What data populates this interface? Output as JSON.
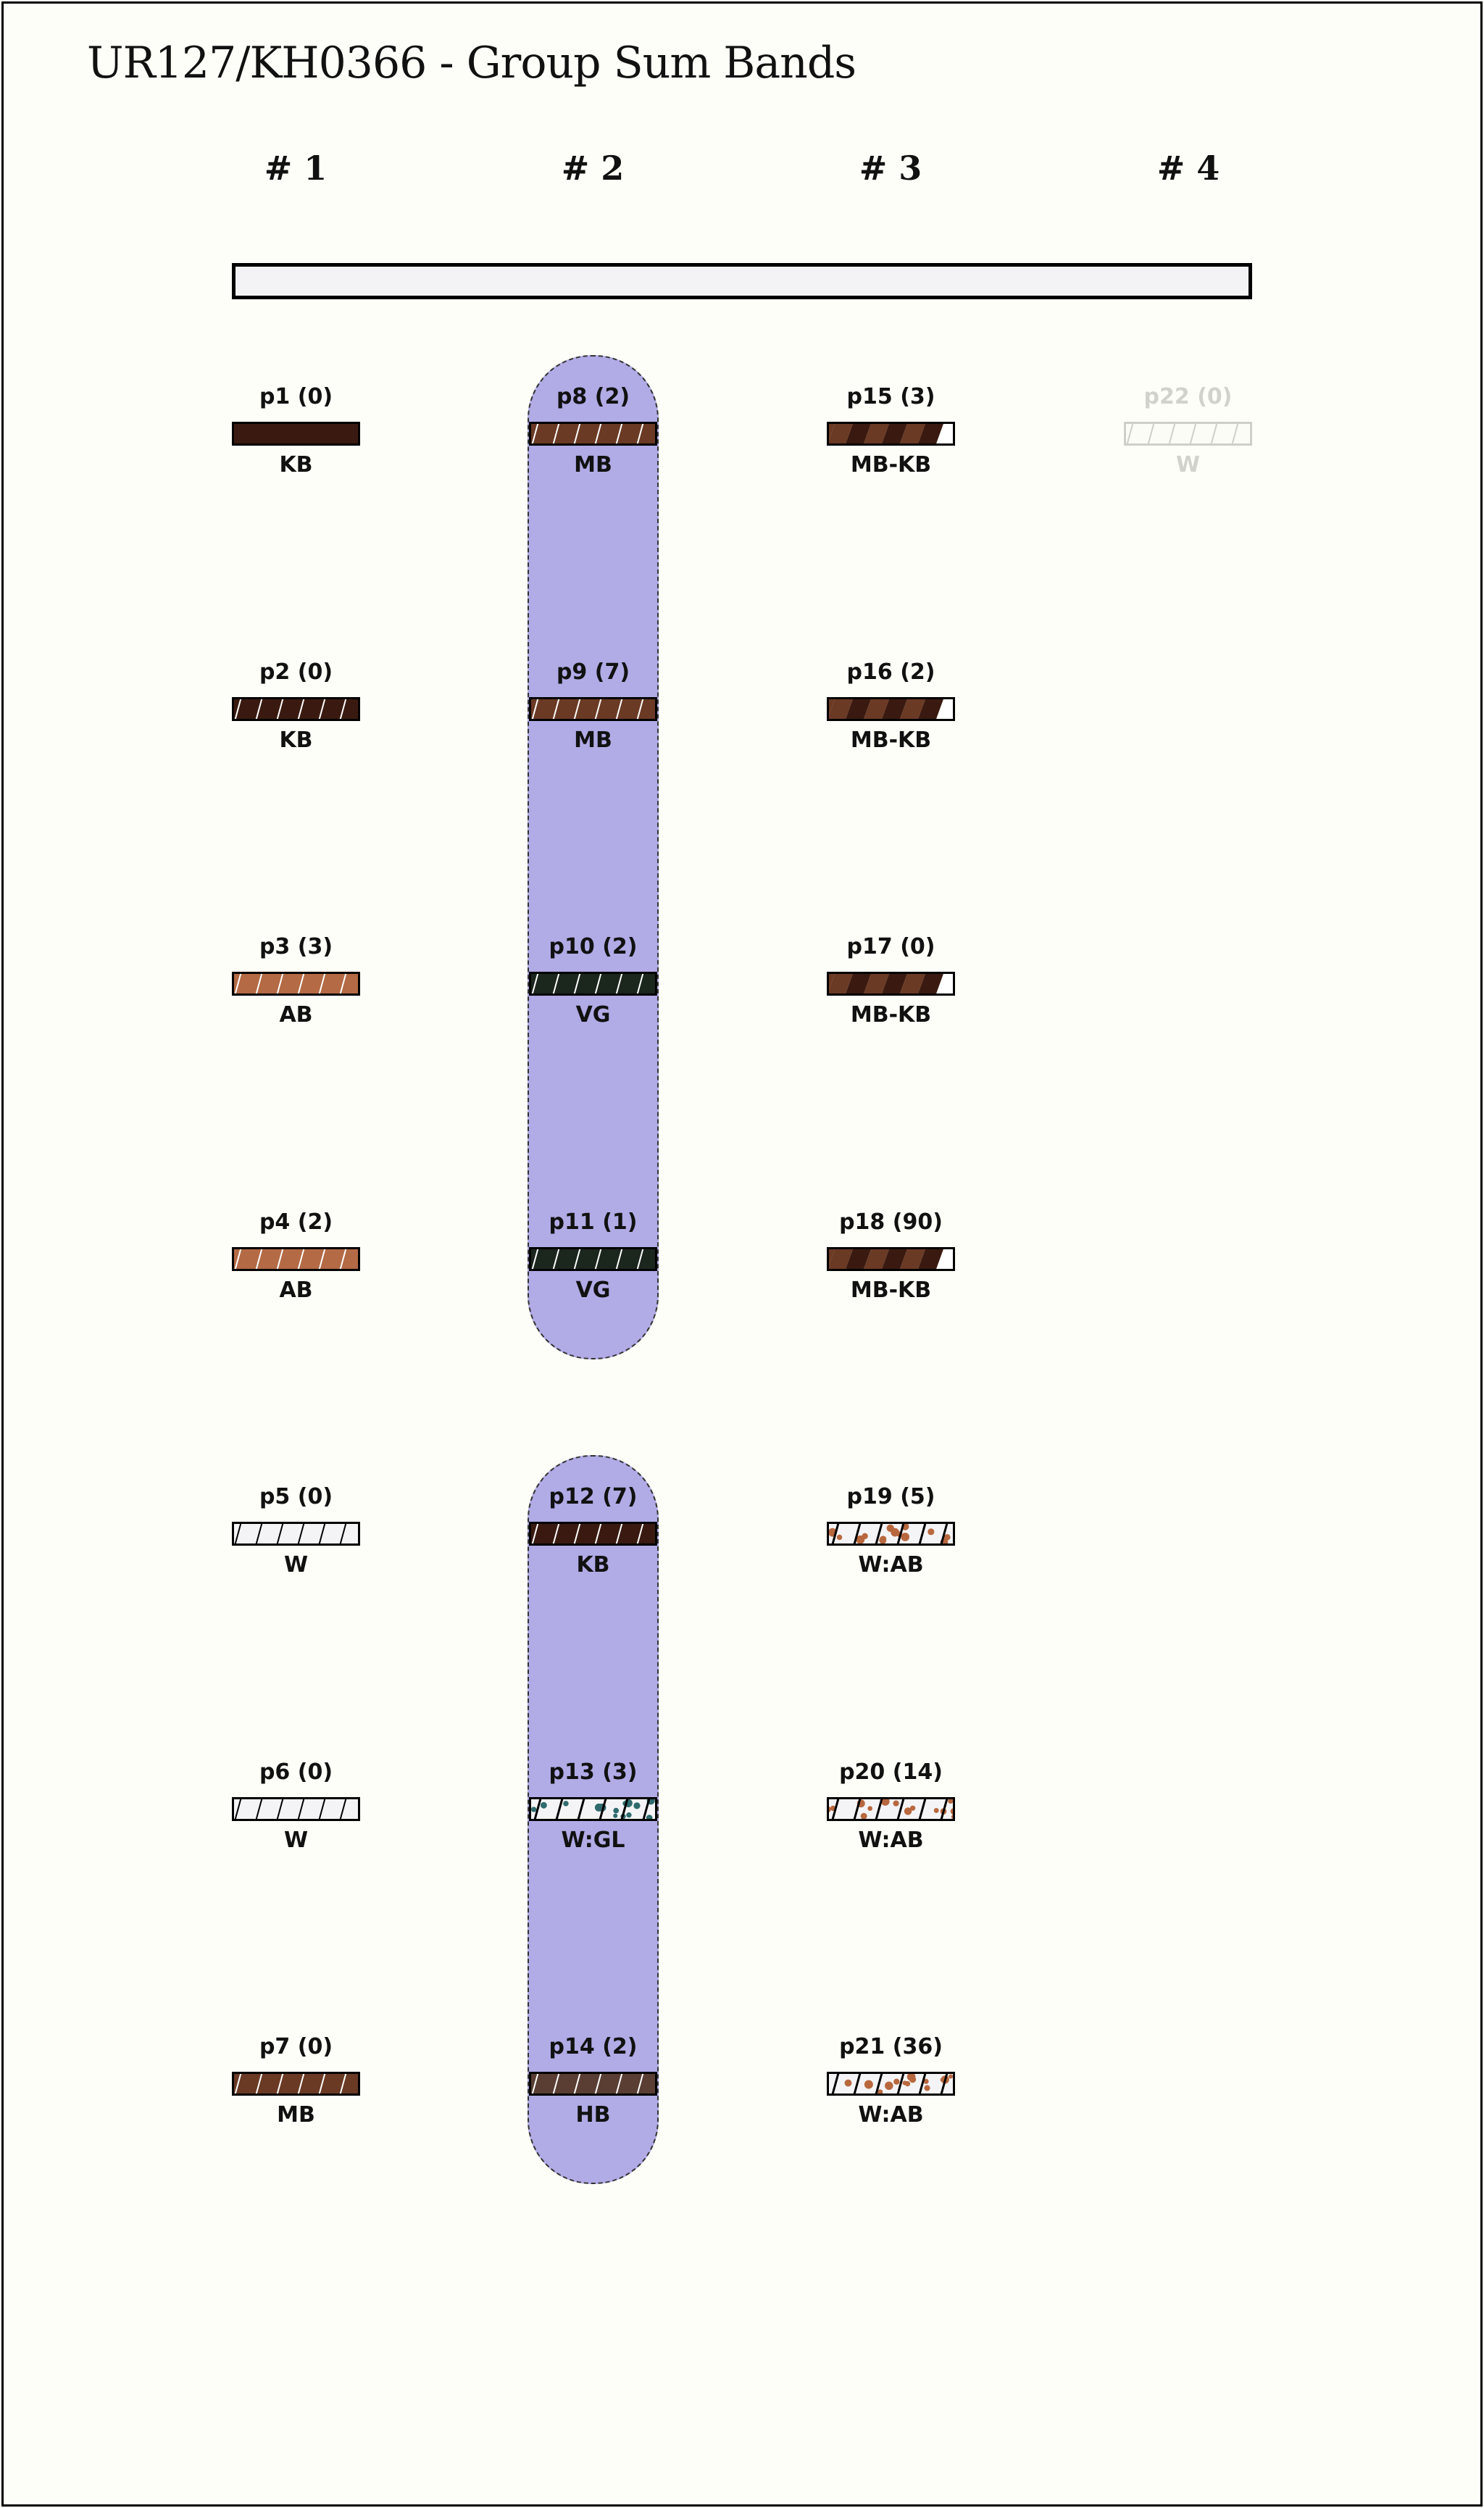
{
  "title": "UR127/KH0366 - Group Sum Bands",
  "columns": [
    "# 1",
    "# 2",
    "# 3",
    "# 4"
  ],
  "colors": {
    "KB": "#3a1a10",
    "MB": "#6b3a24",
    "AB": "#b46a44",
    "VG": "#1b261d",
    "HB": "#5a3e33",
    "W": "#f4f4f6",
    "group_highlight": "#b1abe6",
    "AB_dots": "#b8683f",
    "GL_dots": "#2f6b6e"
  },
  "groups": [
    {
      "column": 2,
      "rows": [
        1,
        4
      ]
    },
    {
      "column": 2,
      "rows": [
        5,
        7
      ]
    }
  ],
  "cells": [
    {
      "column": 1,
      "row": 1,
      "name": "p1",
      "count": "(0)",
      "label": "KB",
      "pattern": "solid",
      "color": "KB"
    },
    {
      "column": 1,
      "row": 2,
      "name": "p2",
      "count": "(0)",
      "label": "KB",
      "pattern": "hatch",
      "color": "KB"
    },
    {
      "column": 1,
      "row": 3,
      "name": "p3",
      "count": "(3)",
      "label": "AB",
      "pattern": "hatch",
      "color": "AB"
    },
    {
      "column": 1,
      "row": 4,
      "name": "p4",
      "count": "(2)",
      "label": "AB",
      "pattern": "hatch",
      "color": "AB"
    },
    {
      "column": 1,
      "row": 5,
      "name": "p5",
      "count": "(0)",
      "label": "W",
      "pattern": "hatch-dark",
      "color": "W"
    },
    {
      "column": 1,
      "row": 6,
      "name": "p6",
      "count": "(0)",
      "label": "W",
      "pattern": "hatch-dark",
      "color": "W"
    },
    {
      "column": 1,
      "row": 7,
      "name": "p7",
      "count": "(0)",
      "label": "MB",
      "pattern": "hatch",
      "color": "MB"
    },
    {
      "column": 2,
      "row": 1,
      "name": "p8",
      "count": "(2)",
      "label": "MB",
      "pattern": "hatch",
      "color": "MB"
    },
    {
      "column": 2,
      "row": 2,
      "name": "p9",
      "count": "(7)",
      "label": "MB",
      "pattern": "hatch",
      "color": "MB"
    },
    {
      "column": 2,
      "row": 3,
      "name": "p10",
      "count": "(2)",
      "label": "VG",
      "pattern": "hatch",
      "color": "VG"
    },
    {
      "column": 2,
      "row": 4,
      "name": "p11",
      "count": "(1)",
      "label": "VG",
      "pattern": "hatch",
      "color": "VG"
    },
    {
      "column": 2,
      "row": 5,
      "name": "p12",
      "count": "(7)",
      "label": "KB",
      "pattern": "hatch",
      "color": "KB"
    },
    {
      "column": 2,
      "row": 6,
      "name": "p13",
      "count": "(3)",
      "label": "W:GL",
      "pattern": "dots",
      "color": "GL_dots"
    },
    {
      "column": 2,
      "row": 7,
      "name": "p14",
      "count": "(2)",
      "label": "HB",
      "pattern": "hatch",
      "color": "HB"
    },
    {
      "column": 3,
      "row": 1,
      "name": "p15",
      "count": "(3)",
      "label": "MB-KB",
      "pattern": "mix",
      "color": "MB"
    },
    {
      "column": 3,
      "row": 2,
      "name": "p16",
      "count": "(2)",
      "label": "MB-KB",
      "pattern": "mix",
      "color": "MB"
    },
    {
      "column": 3,
      "row": 3,
      "name": "p17",
      "count": "(0)",
      "label": "MB-KB",
      "pattern": "mix",
      "color": "MB"
    },
    {
      "column": 3,
      "row": 4,
      "name": "p18",
      "count": "(90)",
      "label": "MB-KB",
      "pattern": "mix",
      "color": "MB"
    },
    {
      "column": 3,
      "row": 5,
      "name": "p19",
      "count": "(5)",
      "label": "W:AB",
      "pattern": "dots",
      "color": "AB_dots"
    },
    {
      "column": 3,
      "row": 6,
      "name": "p20",
      "count": "(14)",
      "label": "W:AB",
      "pattern": "dots",
      "color": "AB_dots"
    },
    {
      "column": 3,
      "row": 7,
      "name": "p21",
      "count": "(36)",
      "label": "W:AB",
      "pattern": "dots",
      "color": "AB_dots"
    },
    {
      "column": 4,
      "row": 1,
      "name": "p22",
      "count": "(0)",
      "label": "W",
      "pattern": "hatch-dark",
      "color": "W",
      "faded": true
    }
  ]
}
